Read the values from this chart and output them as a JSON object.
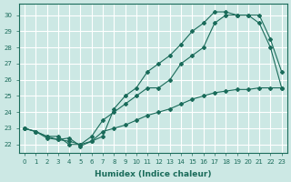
{
  "xlabel": "Humidex (Indice chaleur)",
  "bg_color": "#cce8e4",
  "grid_color": "#ffffff",
  "line_color": "#1a6b5a",
  "xlim": [
    -0.5,
    23.5
  ],
  "ylim": [
    21.5,
    30.7
  ],
  "xticks": [
    0,
    1,
    2,
    3,
    4,
    5,
    6,
    7,
    8,
    9,
    10,
    11,
    12,
    13,
    14,
    15,
    16,
    17,
    18,
    19,
    20,
    21,
    22,
    23
  ],
  "yticks": [
    22,
    23,
    24,
    25,
    26,
    27,
    28,
    29,
    30
  ],
  "series": [
    {
      "x": [
        0,
        1,
        2,
        3,
        4,
        5,
        6,
        7,
        8,
        9,
        10,
        11,
        12,
        13,
        14,
        15,
        16,
        17,
        18,
        19,
        20,
        21,
        22,
        23
      ],
      "y": [
        23.0,
        22.8,
        22.5,
        22.5,
        22.0,
        22.0,
        22.2,
        22.5,
        24.2,
        25.0,
        25.5,
        26.5,
        27.0,
        27.5,
        28.2,
        29.0,
        29.5,
        30.2,
        30.2,
        30.0,
        30.0,
        30.0,
        28.5,
        26.5
      ]
    },
    {
      "x": [
        0,
        1,
        2,
        3,
        4,
        5,
        6,
        7,
        8,
        9,
        10,
        11,
        12,
        13,
        14,
        15,
        16,
        17,
        18,
        19,
        20,
        21,
        22,
        23
      ],
      "y": [
        23.0,
        22.8,
        22.5,
        22.3,
        22.2,
        22.0,
        22.5,
        23.5,
        24.0,
        24.5,
        25.0,
        25.5,
        25.5,
        26.0,
        27.0,
        27.5,
        28.0,
        29.5,
        30.0,
        30.0,
        30.0,
        29.5,
        28.0,
        25.5
      ]
    },
    {
      "x": [
        0,
        1,
        2,
        3,
        4,
        5,
        6,
        7,
        8,
        9,
        10,
        11,
        12,
        13,
        14,
        15,
        16,
        17,
        18,
        19,
        20,
        21,
        22,
        23
      ],
      "y": [
        23.0,
        22.8,
        22.4,
        22.3,
        22.4,
        21.9,
        22.2,
        22.8,
        23.0,
        23.2,
        23.5,
        23.8,
        24.0,
        24.2,
        24.5,
        24.8,
        25.0,
        25.2,
        25.3,
        25.4,
        25.4,
        25.5,
        25.5,
        25.5
      ]
    }
  ]
}
